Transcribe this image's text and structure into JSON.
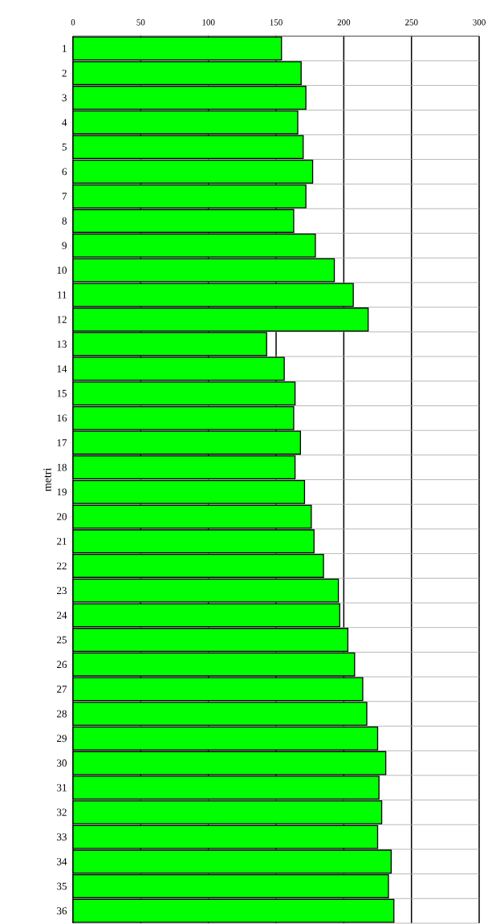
{
  "chart_data": {
    "type": "bar",
    "orientation": "horizontal",
    "ylabel": "metri",
    "categories": [
      "1",
      "2",
      "3",
      "4",
      "5",
      "6",
      "7",
      "8",
      "9",
      "10",
      "11",
      "12",
      "13",
      "14",
      "15",
      "16",
      "17",
      "18",
      "19",
      "20",
      "21",
      "22",
      "23",
      "24",
      "25",
      "26",
      "27",
      "28",
      "29",
      "30",
      "31",
      "32",
      "33",
      "34",
      "35",
      "36"
    ],
    "values": [
      154,
      168.5,
      172,
      166,
      170,
      177,
      172,
      163,
      179,
      193,
      207,
      218,
      143,
      156,
      164,
      163,
      168,
      164,
      171,
      176,
      178,
      185,
      196,
      197,
      203,
      208,
      214,
      217,
      225,
      231,
      226,
      228,
      225,
      235,
      233,
      237
    ],
    "color": "#00ff00",
    "xlim": [
      0,
      300
    ],
    "xticks": [
      0,
      50,
      100,
      150,
      200,
      250,
      300
    ],
    "grid": true
  }
}
